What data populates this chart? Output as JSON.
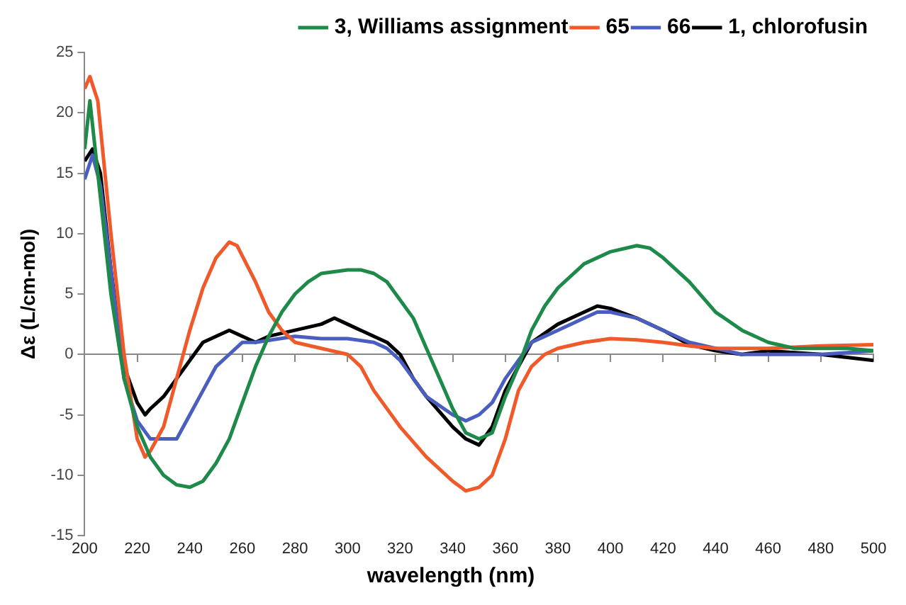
{
  "chart_data": {
    "type": "line",
    "xlabel": "wavelength (nm)",
    "ylabel": "Δε (L/cm-mol)",
    "xlim": [
      200,
      500
    ],
    "xticks": [
      200,
      220,
      240,
      260,
      280,
      300,
      320,
      340,
      360,
      380,
      400,
      420,
      440,
      460,
      480,
      500
    ],
    "ylim": [
      -15,
      25
    ],
    "yticks": [
      -15,
      -10,
      -5,
      0,
      5,
      10,
      15,
      20,
      25
    ],
    "legend": "top right",
    "marker": "none",
    "line_style": "solid",
    "series": [
      {
        "name": "3, Williams assignment",
        "color": "#1e8a4a",
        "x": [
          200,
          202,
          205,
          210,
          215,
          220,
          225,
          230,
          235,
          240,
          245,
          250,
          255,
          260,
          265,
          270,
          275,
          280,
          285,
          290,
          300,
          305,
          310,
          315,
          320,
          325,
          330,
          335,
          340,
          345,
          350,
          355,
          360,
          365,
          370,
          375,
          380,
          390,
          400,
          410,
          415,
          420,
          430,
          440,
          450,
          460,
          470,
          480,
          490,
          500
        ],
        "values": [
          17,
          21,
          15,
          5,
          -2,
          -6,
          -8.5,
          -10,
          -10.8,
          -11,
          -10.5,
          -9,
          -7,
          -4,
          -1,
          1.5,
          3.5,
          5,
          6,
          6.7,
          7,
          7,
          6.7,
          6,
          4.5,
          3,
          0.5,
          -2,
          -4.5,
          -6.5,
          -7,
          -6.5,
          -3.5,
          -1,
          2,
          4,
          5.5,
          7.5,
          8.5,
          9,
          8.8,
          8,
          6,
          3.5,
          2,
          1,
          0.5,
          0.5,
          0.5,
          0.3
        ]
      },
      {
        "name": "65",
        "color": "#f05a2a",
        "x": [
          200,
          202,
          205,
          210,
          215,
          220,
          223,
          225,
          230,
          235,
          240,
          245,
          250,
          255,
          258,
          265,
          270,
          275,
          280,
          290,
          300,
          305,
          310,
          320,
          330,
          340,
          345,
          350,
          355,
          360,
          365,
          370,
          375,
          380,
          390,
          400,
          410,
          420,
          430,
          440,
          460,
          480,
          500
        ],
        "values": [
          22,
          23,
          21,
          10,
          0,
          -7,
          -8.5,
          -8,
          -6,
          -2,
          2,
          5.5,
          8,
          9.3,
          9,
          6,
          3.5,
          2,
          1,
          0.5,
          0,
          -1,
          -3,
          -6,
          -8.5,
          -10.5,
          -11.3,
          -11,
          -10,
          -7,
          -3,
          -1,
          0,
          0.5,
          1,
          1.3,
          1.2,
          1,
          0.7,
          0.5,
          0.5,
          0.7,
          0.8
        ]
      },
      {
        "name": "66",
        "color": "#4a5ec0",
        "x": [
          200,
          203,
          206,
          210,
          215,
          220,
          225,
          230,
          235,
          240,
          245,
          250,
          255,
          260,
          265,
          280,
          290,
          300,
          310,
          315,
          320,
          325,
          330,
          340,
          345,
          350,
          355,
          360,
          365,
          370,
          380,
          390,
          395,
          400,
          410,
          420,
          430,
          440,
          450,
          460,
          480,
          500
        ],
        "values": [
          14.5,
          16.5,
          14,
          7,
          -2,
          -5.5,
          -7,
          -7,
          -7,
          -5,
          -3,
          -1,
          0,
          1,
          1,
          1.5,
          1.3,
          1.3,
          1,
          0.5,
          -0.5,
          -2,
          -3.5,
          -5,
          -5.5,
          -5,
          -4,
          -2,
          -0.5,
          1,
          2,
          3,
          3.5,
          3.5,
          3,
          2,
          1,
          0.5,
          0,
          0,
          0,
          0.3
        ]
      },
      {
        "name": "1, chlorofusin",
        "color": "#000000",
        "x": [
          200,
          203,
          206,
          210,
          215,
          220,
          223,
          225,
          230,
          235,
          240,
          245,
          250,
          255,
          260,
          265,
          270,
          280,
          290,
          295,
          300,
          305,
          310,
          315,
          320,
          325,
          330,
          340,
          345,
          350,
          355,
          360,
          365,
          370,
          380,
          390,
          395,
          400,
          410,
          420,
          430,
          440,
          450,
          460,
          480,
          500
        ],
        "values": [
          16,
          17,
          15,
          7,
          -1,
          -4,
          -5,
          -4.5,
          -3.5,
          -2,
          -0.5,
          1,
          1.5,
          2,
          1.5,
          1,
          1.5,
          2,
          2.5,
          3,
          2.5,
          2,
          1.5,
          1,
          0,
          -2,
          -3.5,
          -6,
          -7,
          -7.5,
          -6,
          -3,
          -1,
          1,
          2.5,
          3.5,
          4,
          3.8,
          3,
          2,
          0.8,
          0.3,
          0,
          0.3,
          0,
          -0.5
        ]
      }
    ]
  }
}
